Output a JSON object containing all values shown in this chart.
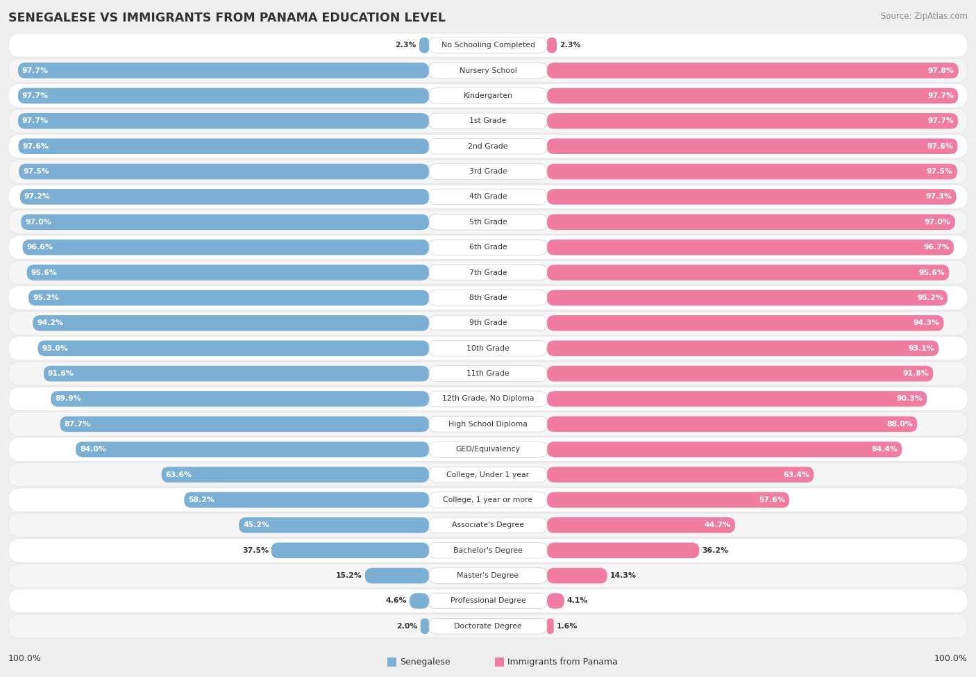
{
  "title": "SENEGALESE VS IMMIGRANTS FROM PANAMA EDUCATION LEVEL",
  "source": "Source: ZipAtlas.com",
  "categories": [
    "No Schooling Completed",
    "Nursery School",
    "Kindergarten",
    "1st Grade",
    "2nd Grade",
    "3rd Grade",
    "4th Grade",
    "5th Grade",
    "6th Grade",
    "7th Grade",
    "8th Grade",
    "9th Grade",
    "10th Grade",
    "11th Grade",
    "12th Grade, No Diploma",
    "High School Diploma",
    "GED/Equivalency",
    "College, Under 1 year",
    "College, 1 year or more",
    "Associate's Degree",
    "Bachelor's Degree",
    "Master's Degree",
    "Professional Degree",
    "Doctorate Degree"
  ],
  "senegalese": [
    2.3,
    97.7,
    97.7,
    97.7,
    97.6,
    97.5,
    97.2,
    97.0,
    96.6,
    95.6,
    95.2,
    94.2,
    93.0,
    91.6,
    89.9,
    87.7,
    84.0,
    63.6,
    58.2,
    45.2,
    37.5,
    15.2,
    4.6,
    2.0
  ],
  "panama": [
    2.3,
    97.8,
    97.7,
    97.7,
    97.6,
    97.5,
    97.3,
    97.0,
    96.7,
    95.6,
    95.2,
    94.3,
    93.1,
    91.8,
    90.3,
    88.0,
    84.4,
    63.4,
    57.6,
    44.7,
    36.2,
    14.3,
    4.1,
    1.6
  ],
  "senegalese_color": "#7bafd4",
  "panama_color": "#f07ca0",
  "background_color": "#efefef",
  "title_color": "#333333",
  "legend_senegalese": "Senegalese",
  "legend_panama": "Immigrants from Panama",
  "row_colors": [
    "#ffffff",
    "#f5f5f5"
  ]
}
